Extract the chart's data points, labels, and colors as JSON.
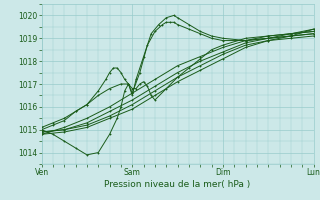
{
  "xlabel": "Pression niveau de la mer( hPa )",
  "bg_color": "#cce8e8",
  "plot_bg_color": "#cce8e8",
  "grid_color": "#99cccc",
  "line_color": "#1a5c1a",
  "ylim": [
    1013.5,
    1020.5
  ],
  "xlim": [
    0,
    144
  ],
  "day_labels": [
    "Ven",
    "Sam",
    "Dim",
    "Lun"
  ],
  "day_positions": [
    0,
    48,
    96,
    144
  ],
  "tick_label_color": "#1a5c1a",
  "xlabel_color": "#1a5c1a",
  "series": [
    {
      "x": [
        0,
        12,
        24,
        36,
        48,
        60,
        72,
        84,
        96,
        108,
        120,
        132,
        144
      ],
      "y": [
        1014.8,
        1015.1,
        1015.5,
        1016.0,
        1016.6,
        1017.2,
        1017.8,
        1018.2,
        1018.6,
        1018.9,
        1019.1,
        1019.2,
        1019.3
      ]
    },
    {
      "x": [
        0,
        12,
        24,
        36,
        48,
        60,
        72,
        84,
        96,
        108,
        120,
        132,
        144
      ],
      "y": [
        1014.9,
        1015.0,
        1015.3,
        1015.8,
        1016.3,
        1016.9,
        1017.5,
        1018.0,
        1018.4,
        1018.8,
        1019.0,
        1019.1,
        1019.2
      ]
    },
    {
      "x": [
        0,
        12,
        24,
        36,
        48,
        60,
        72,
        84,
        96,
        108,
        120,
        132,
        144
      ],
      "y": [
        1014.9,
        1015.0,
        1015.2,
        1015.6,
        1016.1,
        1016.7,
        1017.3,
        1017.8,
        1018.3,
        1018.7,
        1018.9,
        1019.1,
        1019.2
      ]
    },
    {
      "x": [
        0,
        12,
        24,
        36,
        48,
        60,
        72,
        84,
        96,
        108,
        120,
        132,
        144
      ],
      "y": [
        1014.8,
        1014.9,
        1015.1,
        1015.5,
        1015.9,
        1016.5,
        1017.1,
        1017.6,
        1018.1,
        1018.6,
        1018.9,
        1019.0,
        1019.1
      ]
    },
    {
      "x": [
        0,
        6,
        12,
        18,
        24,
        30,
        36,
        40,
        42,
        44,
        46,
        48,
        50,
        52,
        54,
        56,
        58,
        60,
        66,
        72,
        78,
        84,
        90,
        96,
        108,
        120,
        132,
        144
      ],
      "y": [
        1015.0,
        1014.8,
        1014.5,
        1014.2,
        1013.9,
        1014.0,
        1014.8,
        1015.5,
        1016.0,
        1016.7,
        1017.0,
        1016.8,
        1016.8,
        1017.0,
        1017.1,
        1016.9,
        1016.5,
        1016.3,
        1016.8,
        1017.3,
        1017.7,
        1018.1,
        1018.5,
        1018.7,
        1019.0,
        1019.1,
        1019.2,
        1019.3
      ]
    },
    {
      "x": [
        0,
        6,
        12,
        18,
        24,
        30,
        34,
        36,
        38,
        40,
        42,
        44,
        46,
        48,
        50,
        54,
        58,
        62,
        66,
        70,
        72,
        78,
        84,
        90,
        96,
        108,
        120,
        132,
        144
      ],
      "y": [
        1015.0,
        1015.2,
        1015.4,
        1015.8,
        1016.1,
        1016.7,
        1017.2,
        1017.5,
        1017.7,
        1017.7,
        1017.5,
        1017.2,
        1017.0,
        1016.5,
        1017.2,
        1018.2,
        1019.2,
        1019.6,
        1019.9,
        1020.0,
        1019.9,
        1019.6,
        1019.3,
        1019.1,
        1019.0,
        1018.9,
        1019.0,
        1019.2,
        1019.4
      ]
    },
    {
      "x": [
        0,
        6,
        12,
        18,
        24,
        30,
        36,
        42,
        46,
        48,
        52,
        56,
        60,
        64,
        66,
        68,
        70,
        72,
        78,
        84,
        90,
        96,
        108,
        120,
        132,
        144
      ],
      "y": [
        1015.1,
        1015.3,
        1015.5,
        1015.8,
        1016.1,
        1016.5,
        1016.8,
        1017.0,
        1017.0,
        1016.6,
        1017.5,
        1018.7,
        1019.3,
        1019.6,
        1019.7,
        1019.7,
        1019.7,
        1019.6,
        1019.4,
        1019.2,
        1019.0,
        1018.9,
        1018.9,
        1019.0,
        1019.1,
        1019.4
      ]
    }
  ]
}
